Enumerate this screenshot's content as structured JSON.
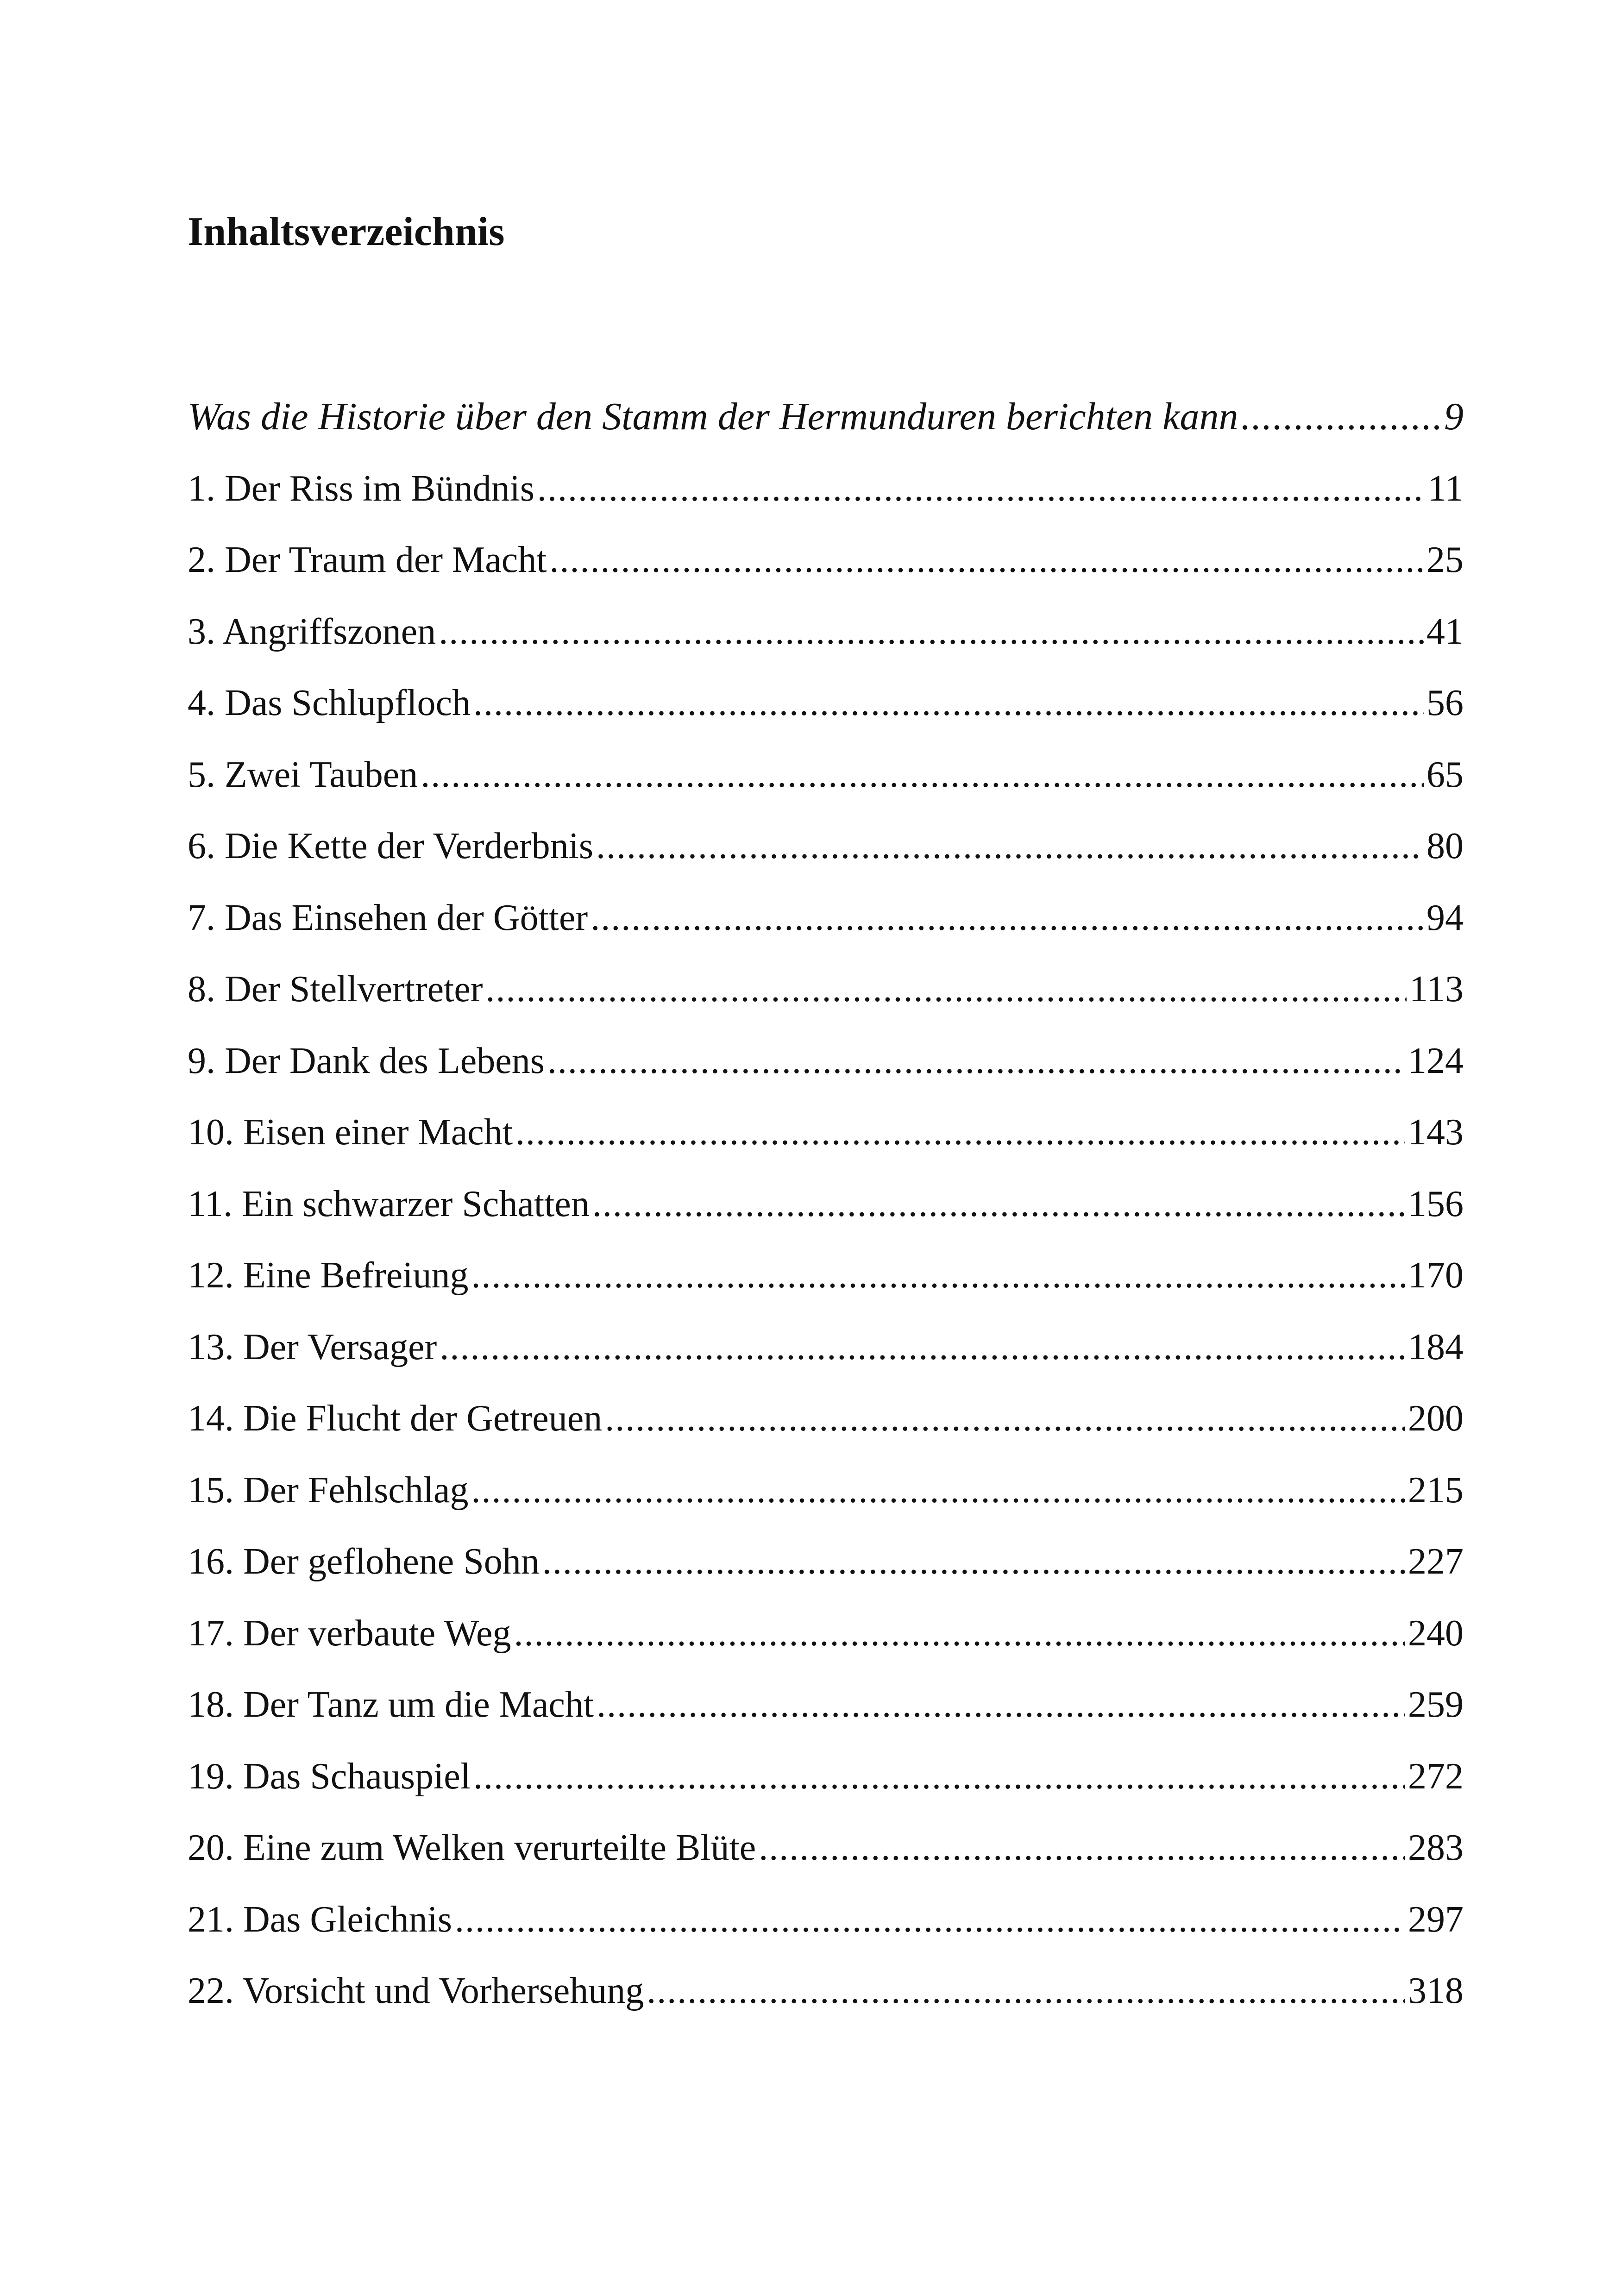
{
  "title": "Inhaltsverzeichnis",
  "entries": [
    {
      "label": "Was die Historie über den Stamm der Hermunduren berichten kann",
      "page": "9",
      "italic": true
    },
    {
      "label": "1. Der Riss im Bündnis",
      "page": "11"
    },
    {
      "label": "2. Der Traum der Macht",
      "page": "25"
    },
    {
      "label": "3. Angriffszonen",
      "page": "41"
    },
    {
      "label": "4. Das Schlupfloch",
      "page": "56"
    },
    {
      "label": "5. Zwei Tauben",
      "page": "65"
    },
    {
      "label": "6. Die Kette der Verderbnis",
      "page": "80"
    },
    {
      "label": "7. Das Einsehen der Götter",
      "page": "94"
    },
    {
      "label": "8. Der Stellvertreter",
      "page": "113"
    },
    {
      "label": "9. Der Dank des Lebens",
      "page": "124"
    },
    {
      "label": "10. Eisen einer Macht",
      "page": "143"
    },
    {
      "label": "11. Ein schwarzer Schatten",
      "page": "156"
    },
    {
      "label": "12. Eine Befreiung",
      "page": "170"
    },
    {
      "label": "13. Der Versager",
      "page": "184"
    },
    {
      "label": "14. Die Flucht der Getreuen",
      "page": "200"
    },
    {
      "label": "15. Der Fehlschlag",
      "page": "215"
    },
    {
      "label": "16. Der geflohene Sohn",
      "page": "227"
    },
    {
      "label": "17. Der verbaute Weg",
      "page": "240"
    },
    {
      "label": "18. Der Tanz um die Macht",
      "page": "259"
    },
    {
      "label": "19. Das Schauspiel",
      "page": "272"
    },
    {
      "label": "20. Eine zum Welken verurteilte Blüte",
      "page": "283"
    },
    {
      "label": "21. Das Gleichnis",
      "page": "297"
    },
    {
      "label": "22. Vorsicht und Vorhersehung",
      "page": "318"
    }
  ]
}
